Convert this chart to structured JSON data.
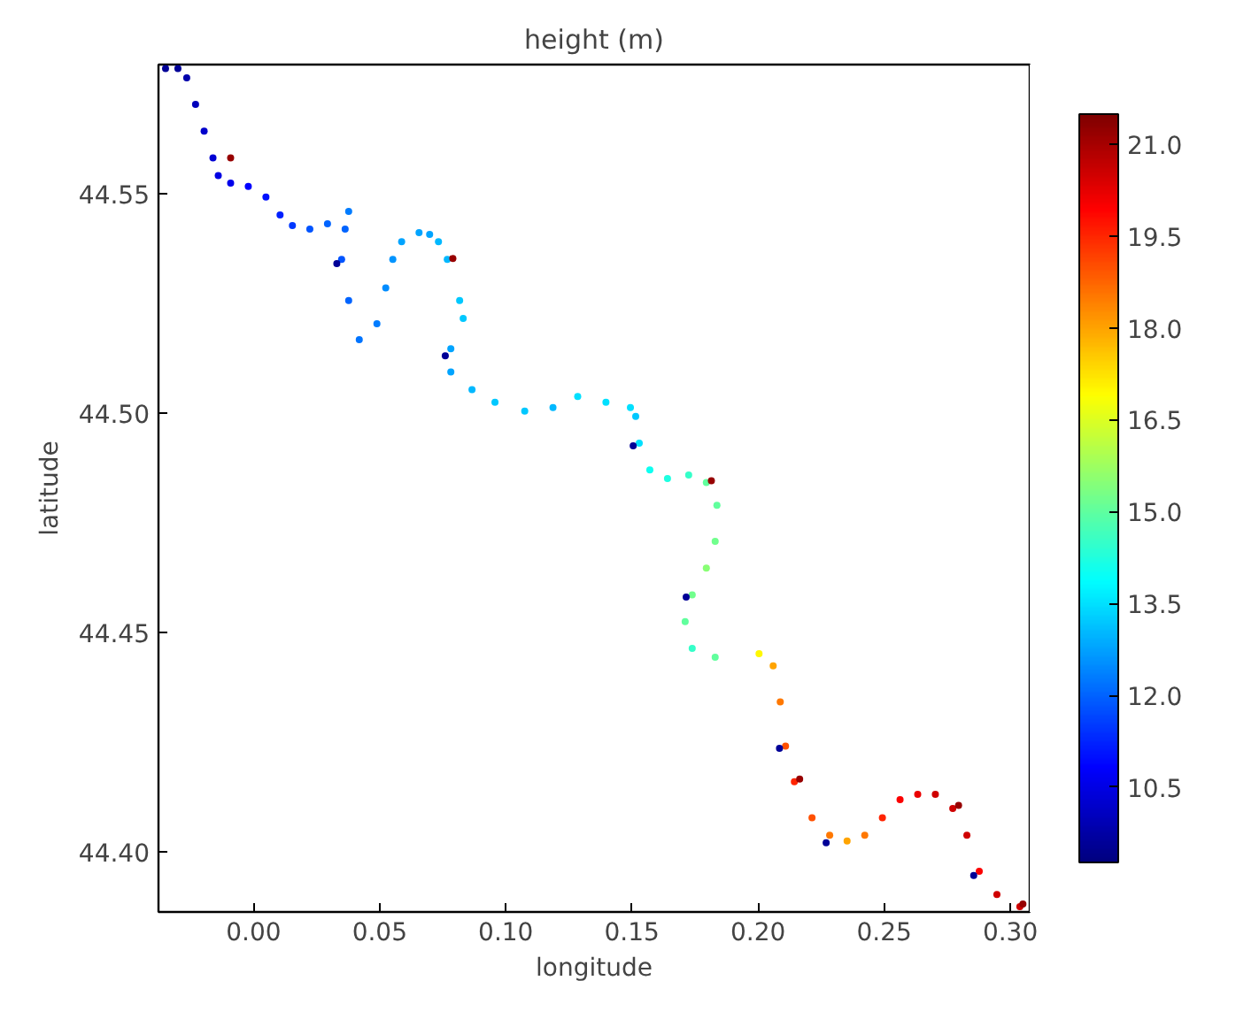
{
  "chart_data": {
    "type": "scatter",
    "title": "height (m)",
    "xlabel": "longitude",
    "ylabel": "latitude",
    "clabel": null,
    "marker": "circle",
    "x": [
      -0.0349,
      -0.03,
      -0.0265,
      -0.023,
      -0.0196,
      -0.0161,
      -0.014,
      -0.0091,
      -0.0021,
      0.0049,
      0.0105,
      0.0154,
      0.0223,
      0.0293,
      0.0377,
      0.0363,
      0.0349,
      0.0377,
      0.0419,
      0.0489,
      0.0524,
      0.0552,
      0.0587,
      0.0656,
      0.0698,
      0.0733,
      0.0768,
      0.0817,
      0.0831,
      0.0782,
      0.0782,
      0.0866,
      0.0957,
      0.1075,
      0.1187,
      0.1285,
      0.1397,
      0.1494,
      0.1515,
      0.1529,
      0.1571,
      0.1641,
      0.1725,
      0.1795,
      0.1837,
      0.183,
      0.1795,
      0.1739,
      0.1711,
      0.1739,
      0.183,
      0.2004,
      0.206,
      0.2088,
      0.2109,
      0.2144,
      0.2214,
      0.2284,
      0.2353,
      0.2423,
      0.2493,
      0.2563,
      0.2633,
      0.2703,
      0.2772,
      0.2828,
      0.2877,
      0.2947,
      0.3038,
      0.033,
      0.076,
      0.1505,
      0.1715,
      0.2085,
      0.227,
      0.2855,
      -0.0091,
      0.079,
      0.1815,
      0.2165,
      0.2795,
      0.305
    ],
    "values": [
      44.5785,
      44.5785,
      44.5764,
      44.5703,
      44.5642,
      44.5581,
      44.5541,
      44.5524,
      44.5516,
      44.5492,
      44.5451,
      44.5427,
      44.5419,
      44.5431,
      44.5459,
      44.5419,
      44.535,
      44.5256,
      44.5167,
      44.5203,
      44.5285,
      44.535,
      44.539,
      44.5411,
      44.5407,
      44.539,
      44.535,
      44.5256,
      44.5215,
      44.5146,
      44.5093,
      44.5053,
      44.5024,
      44.5004,
      44.5012,
      44.5037,
      44.5024,
      44.5012,
      44.4992,
      44.4931,
      44.487,
      44.485,
      44.4858,
      44.4841,
      44.4789,
      44.4707,
      44.4646,
      44.4585,
      44.4524,
      44.4463,
      44.4443,
      44.4451,
      44.4423,
      44.4341,
      44.424,
      44.4159,
      44.4077,
      44.4037,
      44.4024,
      44.4037,
      44.4077,
      44.4118,
      44.413,
      44.413,
      44.4098,
      44.4037,
      44.3955,
      44.3902,
      44.3874,
      44.534,
      44.513,
      44.4925,
      44.458,
      44.4235,
      44.402,
      44.3945,
      44.5581,
      44.5352,
      44.4845,
      44.4165,
      44.4105,
      44.388
    ],
    "cvalues": [
      9.6,
      9.6,
      9.8,
      10.0,
      10.2,
      10.3,
      10.5,
      10.6,
      10.8,
      11.0,
      11.2,
      11.5,
      11.8,
      12.0,
      12.3,
      12.0,
      11.8,
      12.0,
      12.2,
      12.3,
      12.5,
      12.6,
      12.8,
      12.8,
      12.8,
      13.0,
      13.0,
      13.2,
      13.2,
      12.8,
      12.8,
      13.0,
      13.2,
      13.2,
      13.0,
      13.5,
      13.5,
      13.5,
      13.2,
      13.5,
      14.0,
      14.2,
      14.5,
      15.0,
      15.0,
      15.2,
      15.5,
      15.2,
      15.0,
      14.5,
      15.0,
      17.0,
      18.0,
      18.5,
      19.0,
      19.5,
      19.0,
      18.5,
      18.0,
      18.5,
      19.5,
      20.0,
      20.2,
      20.5,
      20.5,
      20.5,
      20.0,
      20.5,
      20.5,
      9.6,
      9.6,
      9.6,
      9.6,
      9.6,
      9.6,
      9.6,
      21.2,
      21.2,
      21.2,
      21.2,
      21.2,
      21.2
    ],
    "xlim": [
      -0.0377,
      0.3077
    ],
    "ylim": [
      44.3862,
      44.5794
    ],
    "xticks": [
      {
        "value": 0,
        "label": "0.00"
      },
      {
        "value": 0.05,
        "label": "0.05"
      },
      {
        "value": 0.1,
        "label": "0.10"
      },
      {
        "value": 0.15,
        "label": "0.15"
      },
      {
        "value": 0.2,
        "label": "0.20"
      },
      {
        "value": 0.25,
        "label": "0.25"
      },
      {
        "value": 0.3,
        "label": "0.30"
      }
    ],
    "yticks": [
      {
        "value": 44.4,
        "label": "44.40"
      },
      {
        "value": 44.45,
        "label": "44.45"
      },
      {
        "value": 44.5,
        "label": "44.50"
      },
      {
        "value": 44.55,
        "label": "44.55"
      }
    ],
    "clim": [
      9.27,
      21.49
    ],
    "cticks": [
      {
        "value": 10.5,
        "label": "10.5"
      },
      {
        "value": 12,
        "label": "12.0"
      },
      {
        "value": 13.5,
        "label": "13.5"
      },
      {
        "value": 15,
        "label": "15.0"
      },
      {
        "value": 16.5,
        "label": "16.5"
      },
      {
        "value": 18,
        "label": "18.0"
      },
      {
        "value": 19.5,
        "label": "19.5"
      },
      {
        "value": 21,
        "label": "21.0"
      }
    ]
  }
}
